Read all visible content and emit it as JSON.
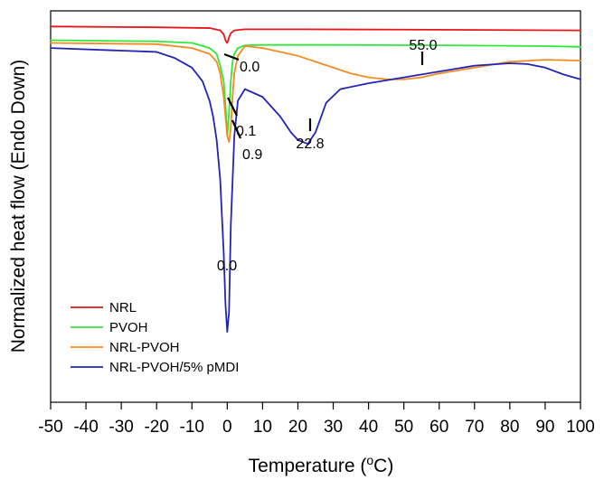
{
  "chart_data": {
    "type": "line",
    "xlabel": "Temperature (",
    "xlabel_sup": "o",
    "xlabel_unit": "C)",
    "ylabel": "Normalized heat flow (Endo Down)",
    "xlim": [
      -50,
      100
    ],
    "xticks": [
      "-50",
      "-40",
      "-30",
      "-20",
      "-10",
      "0",
      "10",
      "20",
      "30",
      "40",
      "50",
      "60",
      "70",
      "80",
      "90",
      "100"
    ],
    "y_tick_labels": false,
    "grid": false,
    "legend_position": "bottom-left",
    "series": [
      {
        "name": "NRL",
        "color": "#e8151b",
        "x": [
          -50,
          -20,
          -5,
          -2,
          -1,
          -0.5,
          0,
          0.5,
          1,
          2,
          5,
          20,
          50,
          80,
          100
        ],
        "y": [
          96.0,
          95.8,
          95.6,
          95.0,
          94.0,
          92.5,
          91.8,
          93.2,
          94.3,
          95.0,
          95.3,
          95.3,
          95.2,
          95.1,
          95.0
        ]
      },
      {
        "name": "PVOH",
        "color": "#2fe83a",
        "x": [
          -50,
          -20,
          -10,
          -5,
          -3,
          -2,
          -1,
          -0.5,
          0,
          0.5,
          1,
          1.5,
          2,
          3,
          5,
          10,
          30,
          60,
          90,
          100
        ],
        "y": [
          92.5,
          92.2,
          91.8,
          90.5,
          89.0,
          86.0,
          82.0,
          76.0,
          68.0,
          74.0,
          82.0,
          87.0,
          89.0,
          90.5,
          91.2,
          91.3,
          91.3,
          91.2,
          91.0,
          90.8
        ]
      },
      {
        "name": "NRL-PVOH",
        "color": "#f58a1f",
        "x": [
          -50,
          -20,
          -10,
          -5,
          -3,
          -2,
          -1,
          0,
          0.5,
          1,
          1.5,
          2,
          3,
          5,
          10,
          20,
          30,
          35,
          40,
          45,
          50,
          55,
          60,
          70,
          80,
          90,
          100
        ],
        "y": [
          91.8,
          91.5,
          90.5,
          89.0,
          87.0,
          84.0,
          78.0,
          68.0,
          66.5,
          70.0,
          78.0,
          84.0,
          88.5,
          91.0,
          90.5,
          88.5,
          85.5,
          84.0,
          83.0,
          82.5,
          82.5,
          83.0,
          84.0,
          85.5,
          87.0,
          87.5,
          87.3
        ]
      },
      {
        "name": "NRL-PVOH/5% pMDI",
        "color": "#2424b4",
        "x": [
          -50,
          -20,
          -15,
          -10,
          -7,
          -5,
          -4,
          -3,
          -2,
          -1,
          -0.5,
          0,
          0.5,
          1,
          2,
          3,
          5,
          10,
          15,
          18,
          20,
          22.8,
          25,
          28,
          32,
          40,
          50,
          60,
          70,
          80,
          85,
          90,
          95,
          100
        ],
        "y": [
          90.5,
          89.5,
          88.0,
          85.5,
          82.0,
          77.0,
          73.0,
          67.0,
          57.0,
          38.0,
          25.0,
          18.0,
          23.0,
          45.0,
          68.0,
          77.0,
          80.0,
          78.0,
          73.0,
          69.0,
          67.0,
          66.0,
          69.0,
          76.5,
          80.0,
          81.5,
          83.0,
          84.5,
          86.0,
          86.6,
          86.4,
          85.5,
          83.8,
          82.5
        ]
      }
    ],
    "annotations": [
      {
        "text": "0.0",
        "series": "NRL"
      },
      {
        "text": "0.1",
        "series": "PVOH"
      },
      {
        "text": "0.9",
        "series": "NRL-PVOH"
      },
      {
        "text": "55.0",
        "series": "NRL-PVOH"
      },
      {
        "text": "22.8",
        "series": "NRL-PVOH/5% pMDI"
      },
      {
        "text": "0.0",
        "series": "NRL-PVOH/5% pMDI"
      }
    ],
    "legend": [
      "NRL",
      "PVOH",
      "NRL-PVOH",
      "NRL-PVOH/5% pMDI"
    ]
  }
}
